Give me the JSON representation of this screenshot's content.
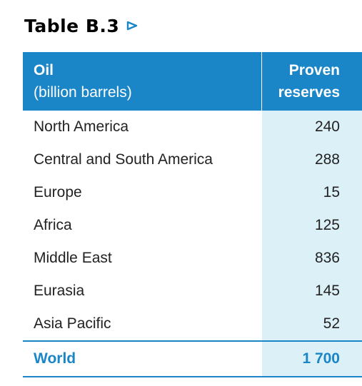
{
  "title": "Table B.3",
  "title_icon": "triangle-right-outline-icon",
  "colors": {
    "accent": "#1a86c8",
    "header_text": "#ffffff",
    "value_column_bg": "#dcf0f8",
    "body_text": "#222222"
  },
  "header": {
    "label_line1": "Oil",
    "label_line2": "(billion barrels)",
    "value_line1": "Proven",
    "value_line2": "reserves"
  },
  "rows": [
    {
      "region": "North America",
      "value": "240"
    },
    {
      "region": "Central and South America",
      "value": "288"
    },
    {
      "region": "Europe",
      "value": "15"
    },
    {
      "region": "Africa",
      "value": "125"
    },
    {
      "region": "Middle East",
      "value": "836"
    },
    {
      "region": "Eurasia",
      "value": "145"
    },
    {
      "region": "Asia Pacific",
      "value": "52"
    }
  ],
  "total": {
    "region": "World",
    "value": "1 700"
  }
}
